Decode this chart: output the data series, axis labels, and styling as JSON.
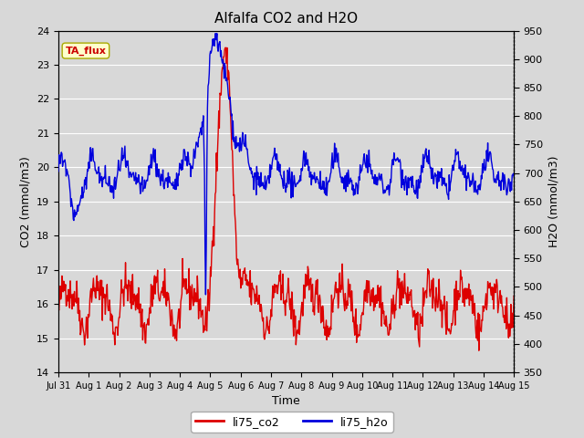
{
  "title": "Alfalfa CO2 and H2O",
  "xlabel": "Time",
  "ylabel_left": "CO2 (mmol/m3)",
  "ylabel_right": "H2O (mmol/m3)",
  "ylim_left": [
    14.0,
    24.0
  ],
  "ylim_right": [
    350,
    950
  ],
  "yticks_left": [
    14.0,
    15.0,
    16.0,
    17.0,
    18.0,
    19.0,
    20.0,
    21.0,
    22.0,
    23.0,
    24.0
  ],
  "yticks_right": [
    350,
    400,
    450,
    500,
    550,
    600,
    650,
    700,
    750,
    800,
    850,
    900,
    950
  ],
  "xtick_labels": [
    "Jul 31",
    "Aug 1",
    "Aug 2",
    "Aug 3",
    "Aug 4",
    "Aug 5",
    "Aug 6",
    "Aug 7",
    "Aug 8",
    "Aug 9",
    "Aug 10",
    "Aug 11",
    "Aug 12",
    "Aug 13",
    "Aug 14",
    "Aug 15"
  ],
  "annotation_text": "TA_flux",
  "annotation_color": "#cc0000",
  "annotation_bg": "#ffffcc",
  "annotation_edge": "#aaaa00",
  "fig_bg_color": "#d8d8d8",
  "plot_bg_color": "#d8d8d8",
  "grid_color": "#ffffff",
  "co2_color": "#dd0000",
  "h2o_color": "#0000dd",
  "legend_co2": "li75_co2",
  "legend_h2o": "li75_h2o",
  "linewidth": 1.0
}
